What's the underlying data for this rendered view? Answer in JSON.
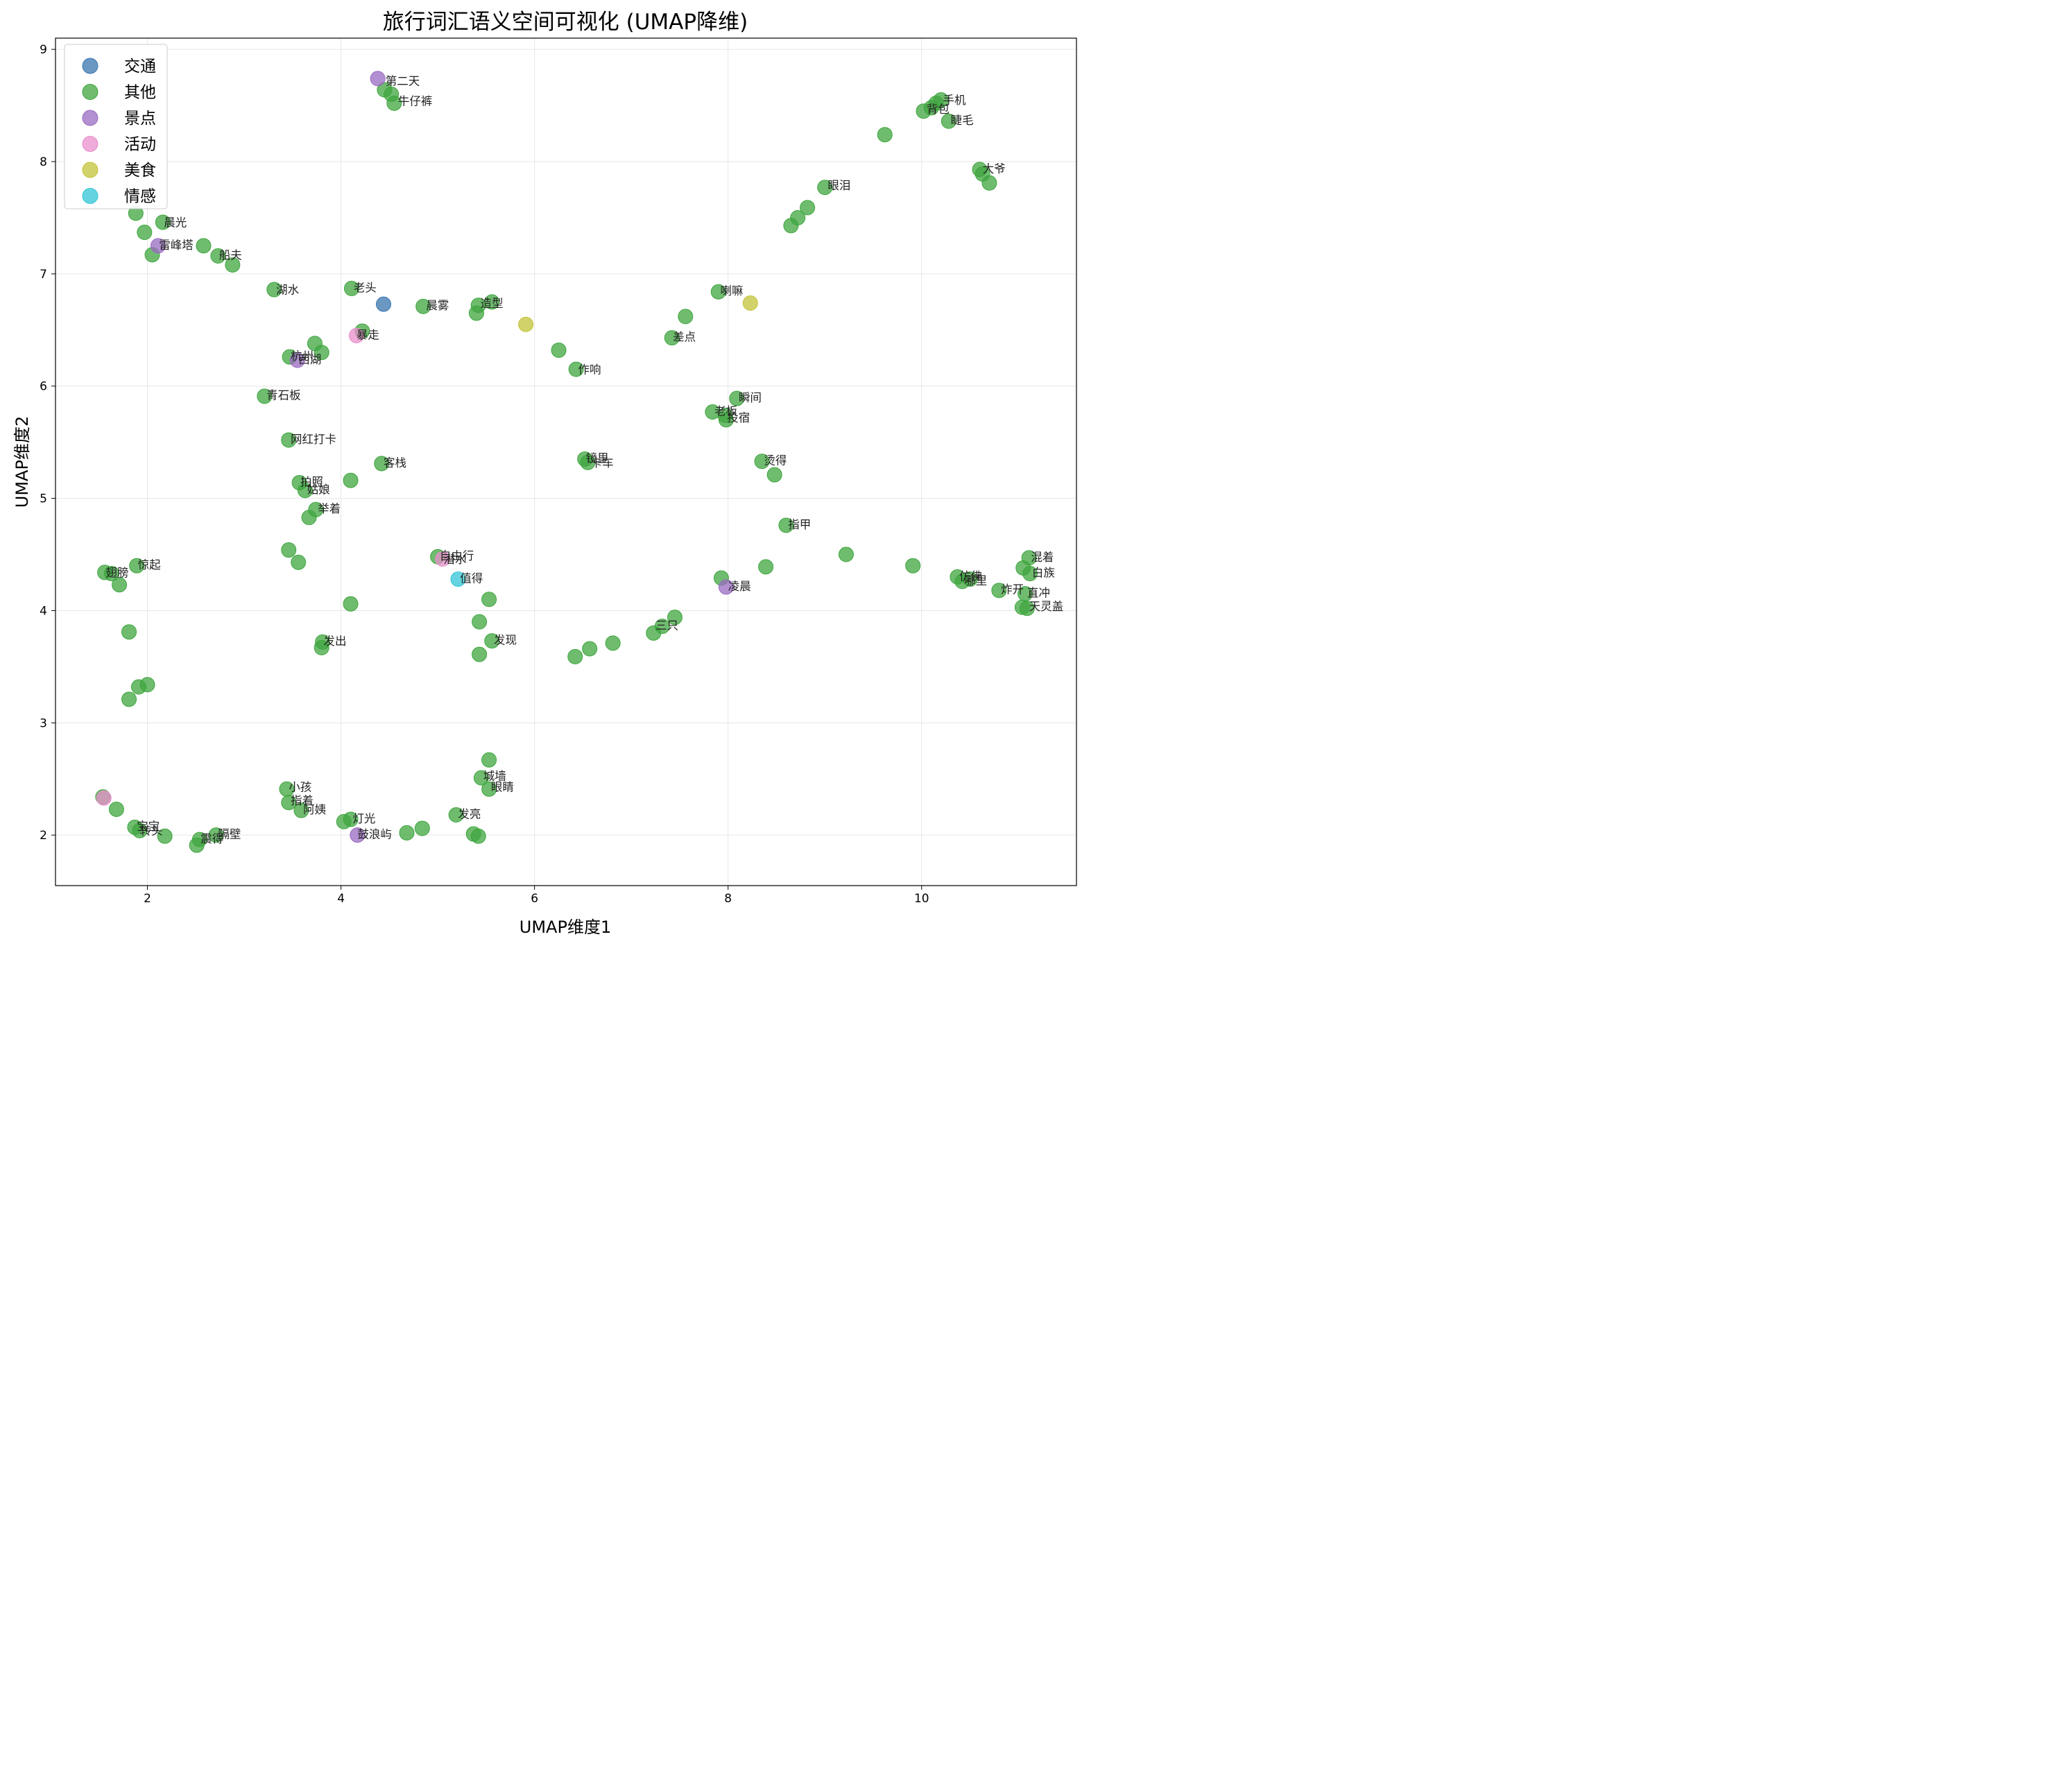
{
  "chart_data": {
    "type": "scatter",
    "title": "旅行词汇语义空间可视化 (UMAP降维)",
    "xlabel": "UMAP维度1",
    "ylabel": "UMAP维度2",
    "xlim": [
      1.05,
      11.6
    ],
    "ylim": [
      1.55,
      9.1
    ],
    "xticks": [
      2,
      4,
      6,
      8,
      10
    ],
    "yticks": [
      2,
      3,
      4,
      5,
      6,
      7,
      8,
      9
    ],
    "grid": true,
    "legend_position": "top-left",
    "colors": {
      "交通": "#3a76af",
      "其他": "#3fa63f",
      "景点": "#9a6bc2",
      "活动": "#e98fcc",
      "美食": "#c3c33a",
      "情感": "#31c6d6"
    },
    "series": [
      {
        "name": "其他",
        "points": [
          {
            "x": 4.45,
            "y": 8.64
          },
          {
            "x": 4.52,
            "y": 8.6
          },
          {
            "x": 4.55,
            "y": 8.52
          },
          {
            "x": 10.02,
            "y": 8.45
          },
          {
            "x": 10.1,
            "y": 8.48
          },
          {
            "x": 10.15,
            "y": 8.52
          },
          {
            "x": 10.2,
            "y": 8.55
          },
          {
            "x": 10.28,
            "y": 8.36
          },
          {
            "x": 9.62,
            "y": 8.24
          },
          {
            "x": 10.6,
            "y": 7.93
          },
          {
            "x": 10.63,
            "y": 7.89
          },
          {
            "x": 10.7,
            "y": 7.81
          },
          {
            "x": 9.0,
            "y": 7.77
          },
          {
            "x": 8.82,
            "y": 7.59
          },
          {
            "x": 8.72,
            "y": 7.5
          },
          {
            "x": 8.65,
            "y": 7.43
          },
          {
            "x": 1.88,
            "y": 7.54
          },
          {
            "x": 1.97,
            "y": 7.37
          },
          {
            "x": 2.05,
            "y": 7.17
          },
          {
            "x": 2.16,
            "y": 7.46
          },
          {
            "x": 2.58,
            "y": 7.25
          },
          {
            "x": 2.73,
            "y": 7.16
          },
          {
            "x": 2.88,
            "y": 7.08
          },
          {
            "x": 3.31,
            "y": 6.86
          },
          {
            "x": 4.11,
            "y": 6.87
          },
          {
            "x": 4.85,
            "y": 6.71
          },
          {
            "x": 5.42,
            "y": 6.72
          },
          {
            "x": 5.4,
            "y": 6.65
          },
          {
            "x": 5.56,
            "y": 6.75
          },
          {
            "x": 4.22,
            "y": 6.49
          },
          {
            "x": 3.73,
            "y": 6.38
          },
          {
            "x": 3.8,
            "y": 6.3
          },
          {
            "x": 3.47,
            "y": 6.26
          },
          {
            "x": 6.25,
            "y": 6.32
          },
          {
            "x": 6.43,
            "y": 6.15
          },
          {
            "x": 7.9,
            "y": 6.84
          },
          {
            "x": 7.56,
            "y": 6.62
          },
          {
            "x": 7.42,
            "y": 6.43
          },
          {
            "x": 3.21,
            "y": 5.91
          },
          {
            "x": 8.09,
            "y": 5.89
          },
          {
            "x": 7.84,
            "y": 5.77
          },
          {
            "x": 7.97,
            "y": 5.74
          },
          {
            "x": 7.98,
            "y": 5.7
          },
          {
            "x": 3.46,
            "y": 5.52
          },
          {
            "x": 4.42,
            "y": 5.31
          },
          {
            "x": 4.1,
            "y": 5.16
          },
          {
            "x": 3.57,
            "y": 5.14
          },
          {
            "x": 3.63,
            "y": 5.07
          },
          {
            "x": 3.74,
            "y": 4.9
          },
          {
            "x": 3.67,
            "y": 4.83
          },
          {
            "x": 6.52,
            "y": 5.35
          },
          {
            "x": 6.55,
            "y": 5.32
          },
          {
            "x": 8.35,
            "y": 5.33
          },
          {
            "x": 8.48,
            "y": 5.21
          },
          {
            "x": 8.6,
            "y": 4.76
          },
          {
            "x": 3.46,
            "y": 4.54
          },
          {
            "x": 3.56,
            "y": 4.43
          },
          {
            "x": 5.0,
            "y": 4.48
          },
          {
            "x": 1.56,
            "y": 4.34
          },
          {
            "x": 1.63,
            "y": 4.33
          },
          {
            "x": 1.71,
            "y": 4.23
          },
          {
            "x": 1.89,
            "y": 4.4
          },
          {
            "x": 1.81,
            "y": 3.81
          },
          {
            "x": 9.22,
            "y": 4.5
          },
          {
            "x": 9.91,
            "y": 4.4
          },
          {
            "x": 8.39,
            "y": 4.39
          },
          {
            "x": 7.93,
            "y": 4.29
          },
          {
            "x": 11.11,
            "y": 4.47
          },
          {
            "x": 11.05,
            "y": 4.38
          },
          {
            "x": 11.12,
            "y": 4.33
          },
          {
            "x": 10.37,
            "y": 4.3
          },
          {
            "x": 10.42,
            "y": 4.26
          },
          {
            "x": 10.5,
            "y": 4.28
          },
          {
            "x": 10.8,
            "y": 4.18
          },
          {
            "x": 11.07,
            "y": 4.15
          },
          {
            "x": 11.04,
            "y": 4.03
          },
          {
            "x": 11.09,
            "y": 4.02
          },
          {
            "x": 4.1,
            "y": 4.06
          },
          {
            "x": 5.53,
            "y": 4.1
          },
          {
            "x": 5.43,
            "y": 3.9
          },
          {
            "x": 5.56,
            "y": 3.73
          },
          {
            "x": 5.43,
            "y": 3.61
          },
          {
            "x": 3.81,
            "y": 3.72
          },
          {
            "x": 3.8,
            "y": 3.67
          },
          {
            "x": 7.45,
            "y": 3.94
          },
          {
            "x": 7.32,
            "y": 3.86
          },
          {
            "x": 7.23,
            "y": 3.8
          },
          {
            "x": 6.81,
            "y": 3.71
          },
          {
            "x": 6.57,
            "y": 3.66
          },
          {
            "x": 6.42,
            "y": 3.59
          },
          {
            "x": 1.91,
            "y": 3.32
          },
          {
            "x": 2.0,
            "y": 3.34
          },
          {
            "x": 1.81,
            "y": 3.21
          },
          {
            "x": 5.53,
            "y": 2.67
          },
          {
            "x": 5.45,
            "y": 2.51
          },
          {
            "x": 5.53,
            "y": 2.41
          },
          {
            "x": 3.44,
            "y": 2.41
          },
          {
            "x": 3.46,
            "y": 2.29
          },
          {
            "x": 3.59,
            "y": 2.22
          },
          {
            "x": 1.54,
            "y": 2.34
          },
          {
            "x": 1.68,
            "y": 2.23
          },
          {
            "x": 1.87,
            "y": 2.07
          },
          {
            "x": 1.92,
            "y": 2.04
          },
          {
            "x": 2.18,
            "y": 1.99
          },
          {
            "x": 2.54,
            "y": 1.96
          },
          {
            "x": 2.51,
            "y": 1.91
          },
          {
            "x": 2.71,
            "y": 2.0
          },
          {
            "x": 4.03,
            "y": 2.12
          },
          {
            "x": 4.1,
            "y": 2.14
          },
          {
            "x": 5.19,
            "y": 2.18
          },
          {
            "x": 4.84,
            "y": 2.06
          },
          {
            "x": 4.68,
            "y": 2.02
          },
          {
            "x": 5.37,
            "y": 2.01
          },
          {
            "x": 5.42,
            "y": 1.99
          }
        ]
      },
      {
        "name": "交通",
        "points": [
          {
            "x": 4.44,
            "y": 6.73
          }
        ]
      },
      {
        "name": "景点",
        "points": [
          {
            "x": 4.38,
            "y": 8.74
          },
          {
            "x": 2.11,
            "y": 7.25
          },
          {
            "x": 3.55,
            "y": 6.23
          },
          {
            "x": 7.98,
            "y": 4.21
          },
          {
            "x": 4.17,
            "y": 2.0
          }
        ]
      },
      {
        "name": "活动",
        "points": [
          {
            "x": 4.16,
            "y": 6.45
          },
          {
            "x": 5.05,
            "y": 4.46
          },
          {
            "x": 1.55,
            "y": 2.33
          }
        ]
      },
      {
        "name": "美食",
        "points": [
          {
            "x": 5.91,
            "y": 6.55
          },
          {
            "x": 8.23,
            "y": 6.74
          }
        ]
      },
      {
        "name": "情感",
        "points": [
          {
            "x": 5.21,
            "y": 4.28
          }
        ]
      }
    ],
    "annotations": [
      {
        "text": "第二天",
        "x": 4.46,
        "y": 8.72
      },
      {
        "text": "牛仔裤",
        "x": 4.59,
        "y": 8.54
      },
      {
        "text": "手机",
        "x": 10.22,
        "y": 8.55
      },
      {
        "text": "背包",
        "x": 10.05,
        "y": 8.47
      },
      {
        "text": "睫毛",
        "x": 10.3,
        "y": 8.37
      },
      {
        "text": "大爷",
        "x": 10.63,
        "y": 7.94
      },
      {
        "text": "眼泪",
        "x": 9.03,
        "y": 7.79
      },
      {
        "text": "晨光",
        "x": 2.17,
        "y": 7.46
      },
      {
        "text": "雷峰塔",
        "x": 2.12,
        "y": 7.26
      },
      {
        "text": "船夫",
        "x": 2.74,
        "y": 7.17
      },
      {
        "text": "湖水",
        "x": 3.33,
        "y": 6.86
      },
      {
        "text": "老头",
        "x": 4.13,
        "y": 6.88
      },
      {
        "text": "晨雾",
        "x": 4.88,
        "y": 6.72
      },
      {
        "text": "造型",
        "x": 5.44,
        "y": 6.74
      },
      {
        "text": "喇嘛",
        "x": 7.92,
        "y": 6.85
      },
      {
        "text": "暴走",
        "x": 4.16,
        "y": 6.46
      },
      {
        "text": "差点",
        "x": 7.43,
        "y": 6.44
      },
      {
        "text": "杭州",
        "x": 3.48,
        "y": 6.27
      },
      {
        "text": "西湖",
        "x": 3.56,
        "y": 6.24
      },
      {
        "text": "作响",
        "x": 6.45,
        "y": 6.15
      },
      {
        "text": "青石板",
        "x": 3.23,
        "y": 5.92
      },
      {
        "text": "瞬间",
        "x": 8.11,
        "y": 5.9
      },
      {
        "text": "老板",
        "x": 7.86,
        "y": 5.78
      },
      {
        "text": "投宿",
        "x": 7.99,
        "y": 5.72
      },
      {
        "text": "网红打卡",
        "x": 3.48,
        "y": 5.53
      },
      {
        "text": "客栈",
        "x": 4.44,
        "y": 5.32
      },
      {
        "text": "镜里",
        "x": 6.53,
        "y": 5.36
      },
      {
        "text": "卡车",
        "x": 6.58,
        "y": 5.32
      },
      {
        "text": "烫得",
        "x": 8.37,
        "y": 5.34
      },
      {
        "text": "拍照",
        "x": 3.58,
        "y": 5.15
      },
      {
        "text": "姑娘",
        "x": 3.65,
        "y": 5.08
      },
      {
        "text": "举着",
        "x": 3.76,
        "y": 4.91
      },
      {
        "text": "指甲",
        "x": 8.62,
        "y": 4.77
      },
      {
        "text": "惊起",
        "x": 1.9,
        "y": 4.41
      },
      {
        "text": "翅膀",
        "x": 1.57,
        "y": 4.34
      },
      {
        "text": "自由行",
        "x": 5.02,
        "y": 4.49
      },
      {
        "text": "潜水",
        "x": 5.06,
        "y": 4.46
      },
      {
        "text": "值得",
        "x": 5.23,
        "y": 4.29
      },
      {
        "text": "凌晨",
        "x": 8.0,
        "y": 4.22
      },
      {
        "text": "仿佛",
        "x": 10.39,
        "y": 4.31
      },
      {
        "text": "哪里",
        "x": 10.44,
        "y": 4.27
      },
      {
        "text": "混着",
        "x": 11.13,
        "y": 4.48
      },
      {
        "text": "白族",
        "x": 11.14,
        "y": 4.34
      },
      {
        "text": "炸开",
        "x": 10.82,
        "y": 4.19
      },
      {
        "text": "直冲",
        "x": 11.09,
        "y": 4.16
      },
      {
        "text": "天灵盖",
        "x": 11.11,
        "y": 4.04
      },
      {
        "text": "三只",
        "x": 7.25,
        "y": 3.87
      },
      {
        "text": "发出",
        "x": 3.82,
        "y": 3.73
      },
      {
        "text": "发现",
        "x": 5.58,
        "y": 3.74
      },
      {
        "text": "城墙",
        "x": 5.47,
        "y": 2.53
      },
      {
        "text": "眼睛",
        "x": 5.55,
        "y": 2.43
      },
      {
        "text": "小孩",
        "x": 3.46,
        "y": 2.43
      },
      {
        "text": "指着",
        "x": 3.48,
        "y": 2.31
      },
      {
        "text": "阿姨",
        "x": 3.61,
        "y": 2.23
      },
      {
        "text": "发亮",
        "x": 5.21,
        "y": 2.19
      },
      {
        "text": "灯光",
        "x": 4.12,
        "y": 2.15
      },
      {
        "text": "鼓浪屿",
        "x": 4.17,
        "y": 2.01
      },
      {
        "text": "宝宝",
        "x": 1.89,
        "y": 2.08
      },
      {
        "text": "转头",
        "x": 1.92,
        "y": 2.04
      },
      {
        "text": "震得",
        "x": 2.55,
        "y": 1.97
      },
      {
        "text": "隔壁",
        "x": 2.73,
        "y": 2.01
      }
    ],
    "legend": [
      "交通",
      "其他",
      "景点",
      "活动",
      "美食",
      "情感"
    ]
  }
}
